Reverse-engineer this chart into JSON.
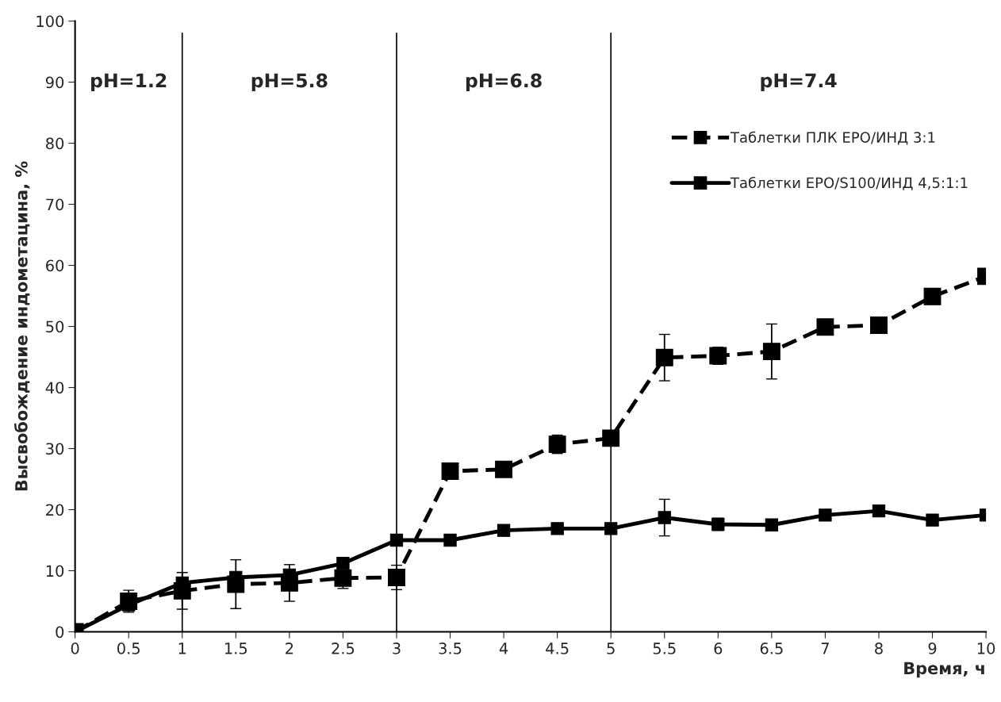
{
  "chart_data": {
    "type": "line",
    "xlabel": "Время, ч",
    "ylabel": "Высвобождение индометацина, %",
    "categories": [
      "0",
      "0.5",
      "1",
      "1.5",
      "2",
      "2.5",
      "3",
      "3.5",
      "4",
      "4.5",
      "5",
      "5.5",
      "6",
      "6.5",
      "7",
      "8",
      "9",
      "10"
    ],
    "series": [
      {
        "name": "Таблетки ПЛК ЕРО/ИНД 3:1",
        "color": "#000000",
        "line_style": "dashed",
        "values": [
          0,
          5,
          6.7,
          7.8,
          8,
          8.8,
          8.9,
          26.3,
          26.6,
          30.7,
          31.7,
          44.9,
          45.2,
          45.9,
          49.9,
          50.2,
          54.9,
          58.2
        ],
        "errors": [
          null,
          1.8,
          3,
          4,
          3,
          1.7,
          2,
          null,
          null,
          1.5,
          null,
          3.8,
          1.4,
          4.5,
          null,
          null,
          null,
          null
        ]
      },
      {
        "name": "Таблетки ЕРО/S100/ИНД 4,5:1:1",
        "color": "#000000",
        "line_style": "solid",
        "values": [
          0,
          4.4,
          8,
          8.9,
          9.3,
          11.2,
          15,
          15,
          16.6,
          16.9,
          16.9,
          18.7,
          17.6,
          17.5,
          19.1,
          19.8,
          18.3,
          19.1
        ],
        "errors": [
          null,
          null,
          null,
          null,
          null,
          null,
          null,
          null,
          null,
          null,
          null,
          3,
          1,
          null,
          null,
          null,
          null,
          null
        ]
      }
    ],
    "ylim": [
      0,
      100
    ],
    "yticks": [
      0,
      10,
      20,
      30,
      40,
      50,
      60,
      70,
      80,
      90,
      100
    ],
    "marker": "square",
    "grid": false,
    "legend": "right",
    "ref_lines": [
      {
        "axis": "x",
        "value": "1"
      },
      {
        "axis": "x",
        "value": "3"
      },
      {
        "axis": "x",
        "value": "5"
      }
    ],
    "annotations": [
      "pH=1.2",
      "pH=5.8",
      "pH=6.8",
      "pH=7.4"
    ]
  }
}
